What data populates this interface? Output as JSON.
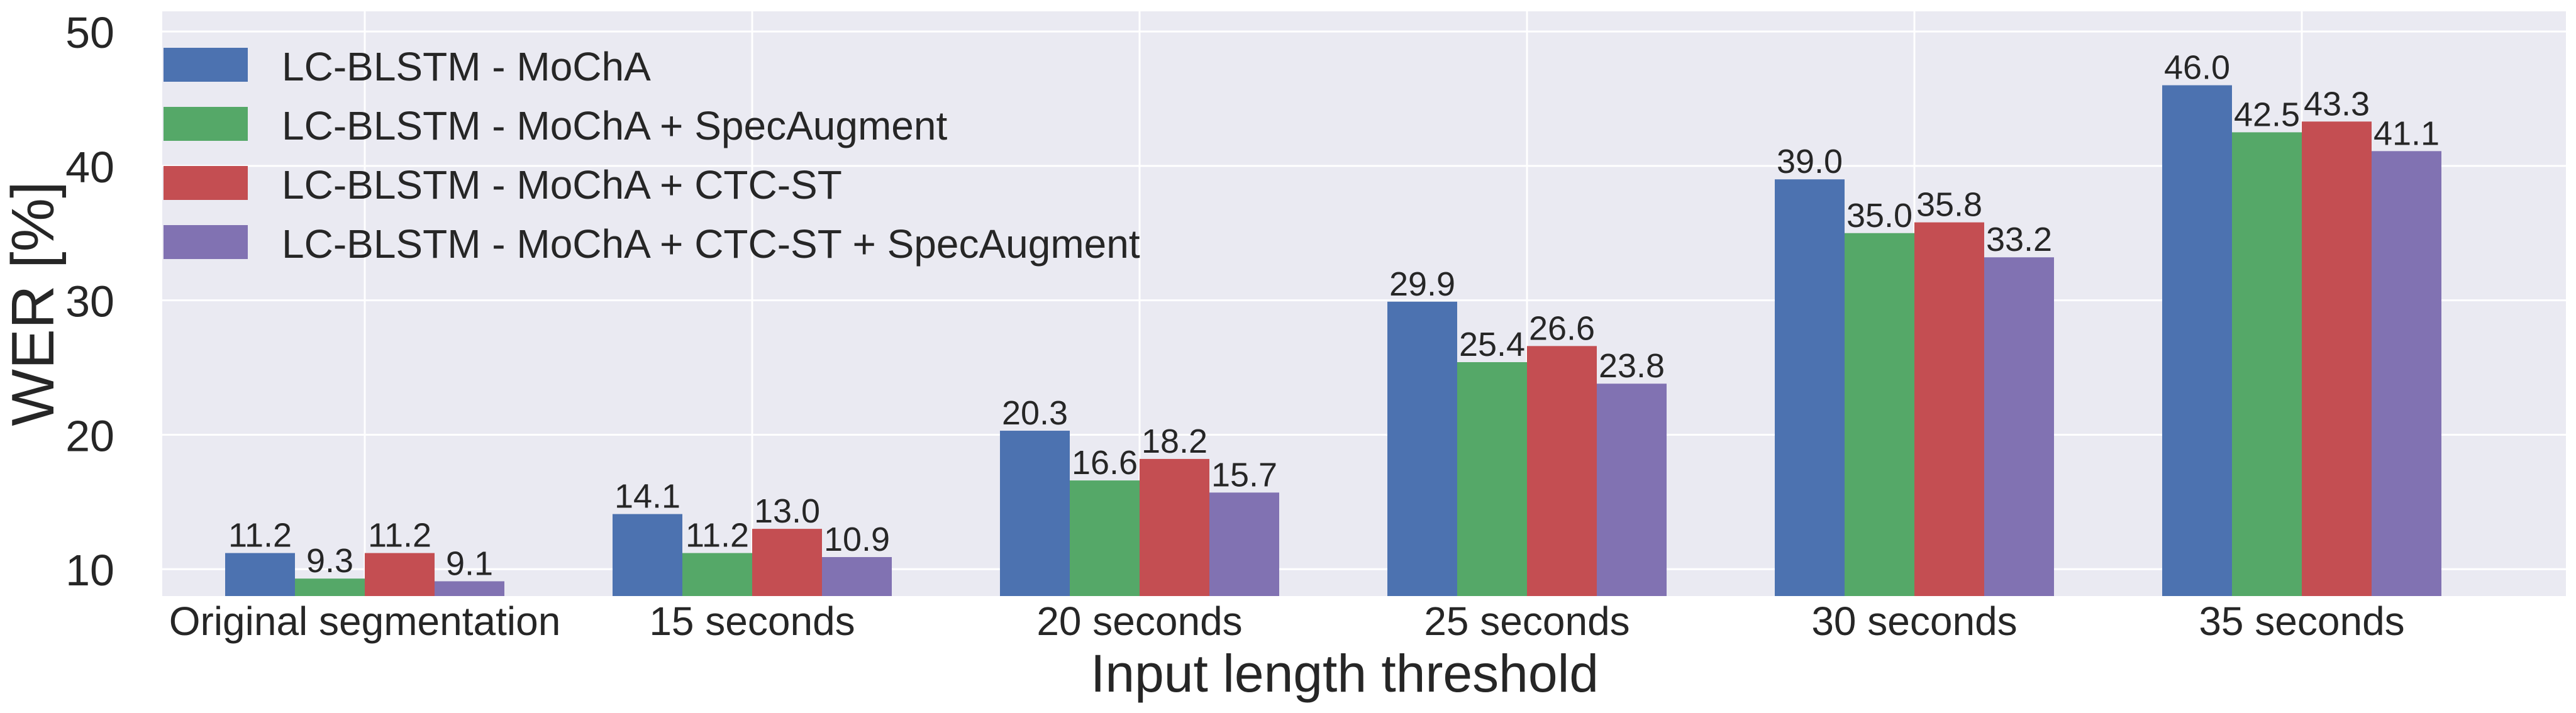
{
  "chart_data": {
    "type": "bar",
    "xlabel": "Input length threshold",
    "ylabel": "WER [%]",
    "ylim": [
      8,
      51.5
    ],
    "yticks": [
      10,
      20,
      30,
      40,
      50
    ],
    "grid": true,
    "legend_position": "top-left",
    "categories": [
      "Original segmentation",
      "15 seconds",
      "20 seconds",
      "25 seconds",
      "30 seconds",
      "35 seconds"
    ],
    "series": [
      {
        "name": "LC-BLSTM - MoChA",
        "color": "#4c72b0",
        "values": [
          11.2,
          14.1,
          20.3,
          29.9,
          39.0,
          46.0
        ],
        "labels": [
          "11.2",
          "14.1",
          "20.3",
          "29.9",
          "39.0",
          "46.0"
        ]
      },
      {
        "name": "LC-BLSTM - MoChA + SpecAugment",
        "color": "#55a868",
        "values": [
          9.3,
          11.2,
          16.6,
          25.4,
          35.0,
          42.5
        ],
        "labels": [
          "9.3",
          "11.2",
          "16.6",
          "25.4",
          "35.0",
          "42.5"
        ]
      },
      {
        "name": "LC-BLSTM - MoChA + CTC-ST",
        "color": "#c44e52",
        "values": [
          11.2,
          13.0,
          18.2,
          26.6,
          35.8,
          43.3
        ],
        "labels": [
          "11.2",
          "13.0",
          "18.2",
          "26.6",
          "35.8",
          "43.3"
        ]
      },
      {
        "name": "LC-BLSTM - MoChA + CTC-ST + SpecAugment",
        "color": "#8172b2",
        "values": [
          9.1,
          10.9,
          15.7,
          23.8,
          33.2,
          41.1
        ],
        "labels": [
          "9.1",
          "10.9",
          "15.7",
          "23.8",
          "33.2",
          "41.1"
        ]
      }
    ]
  }
}
